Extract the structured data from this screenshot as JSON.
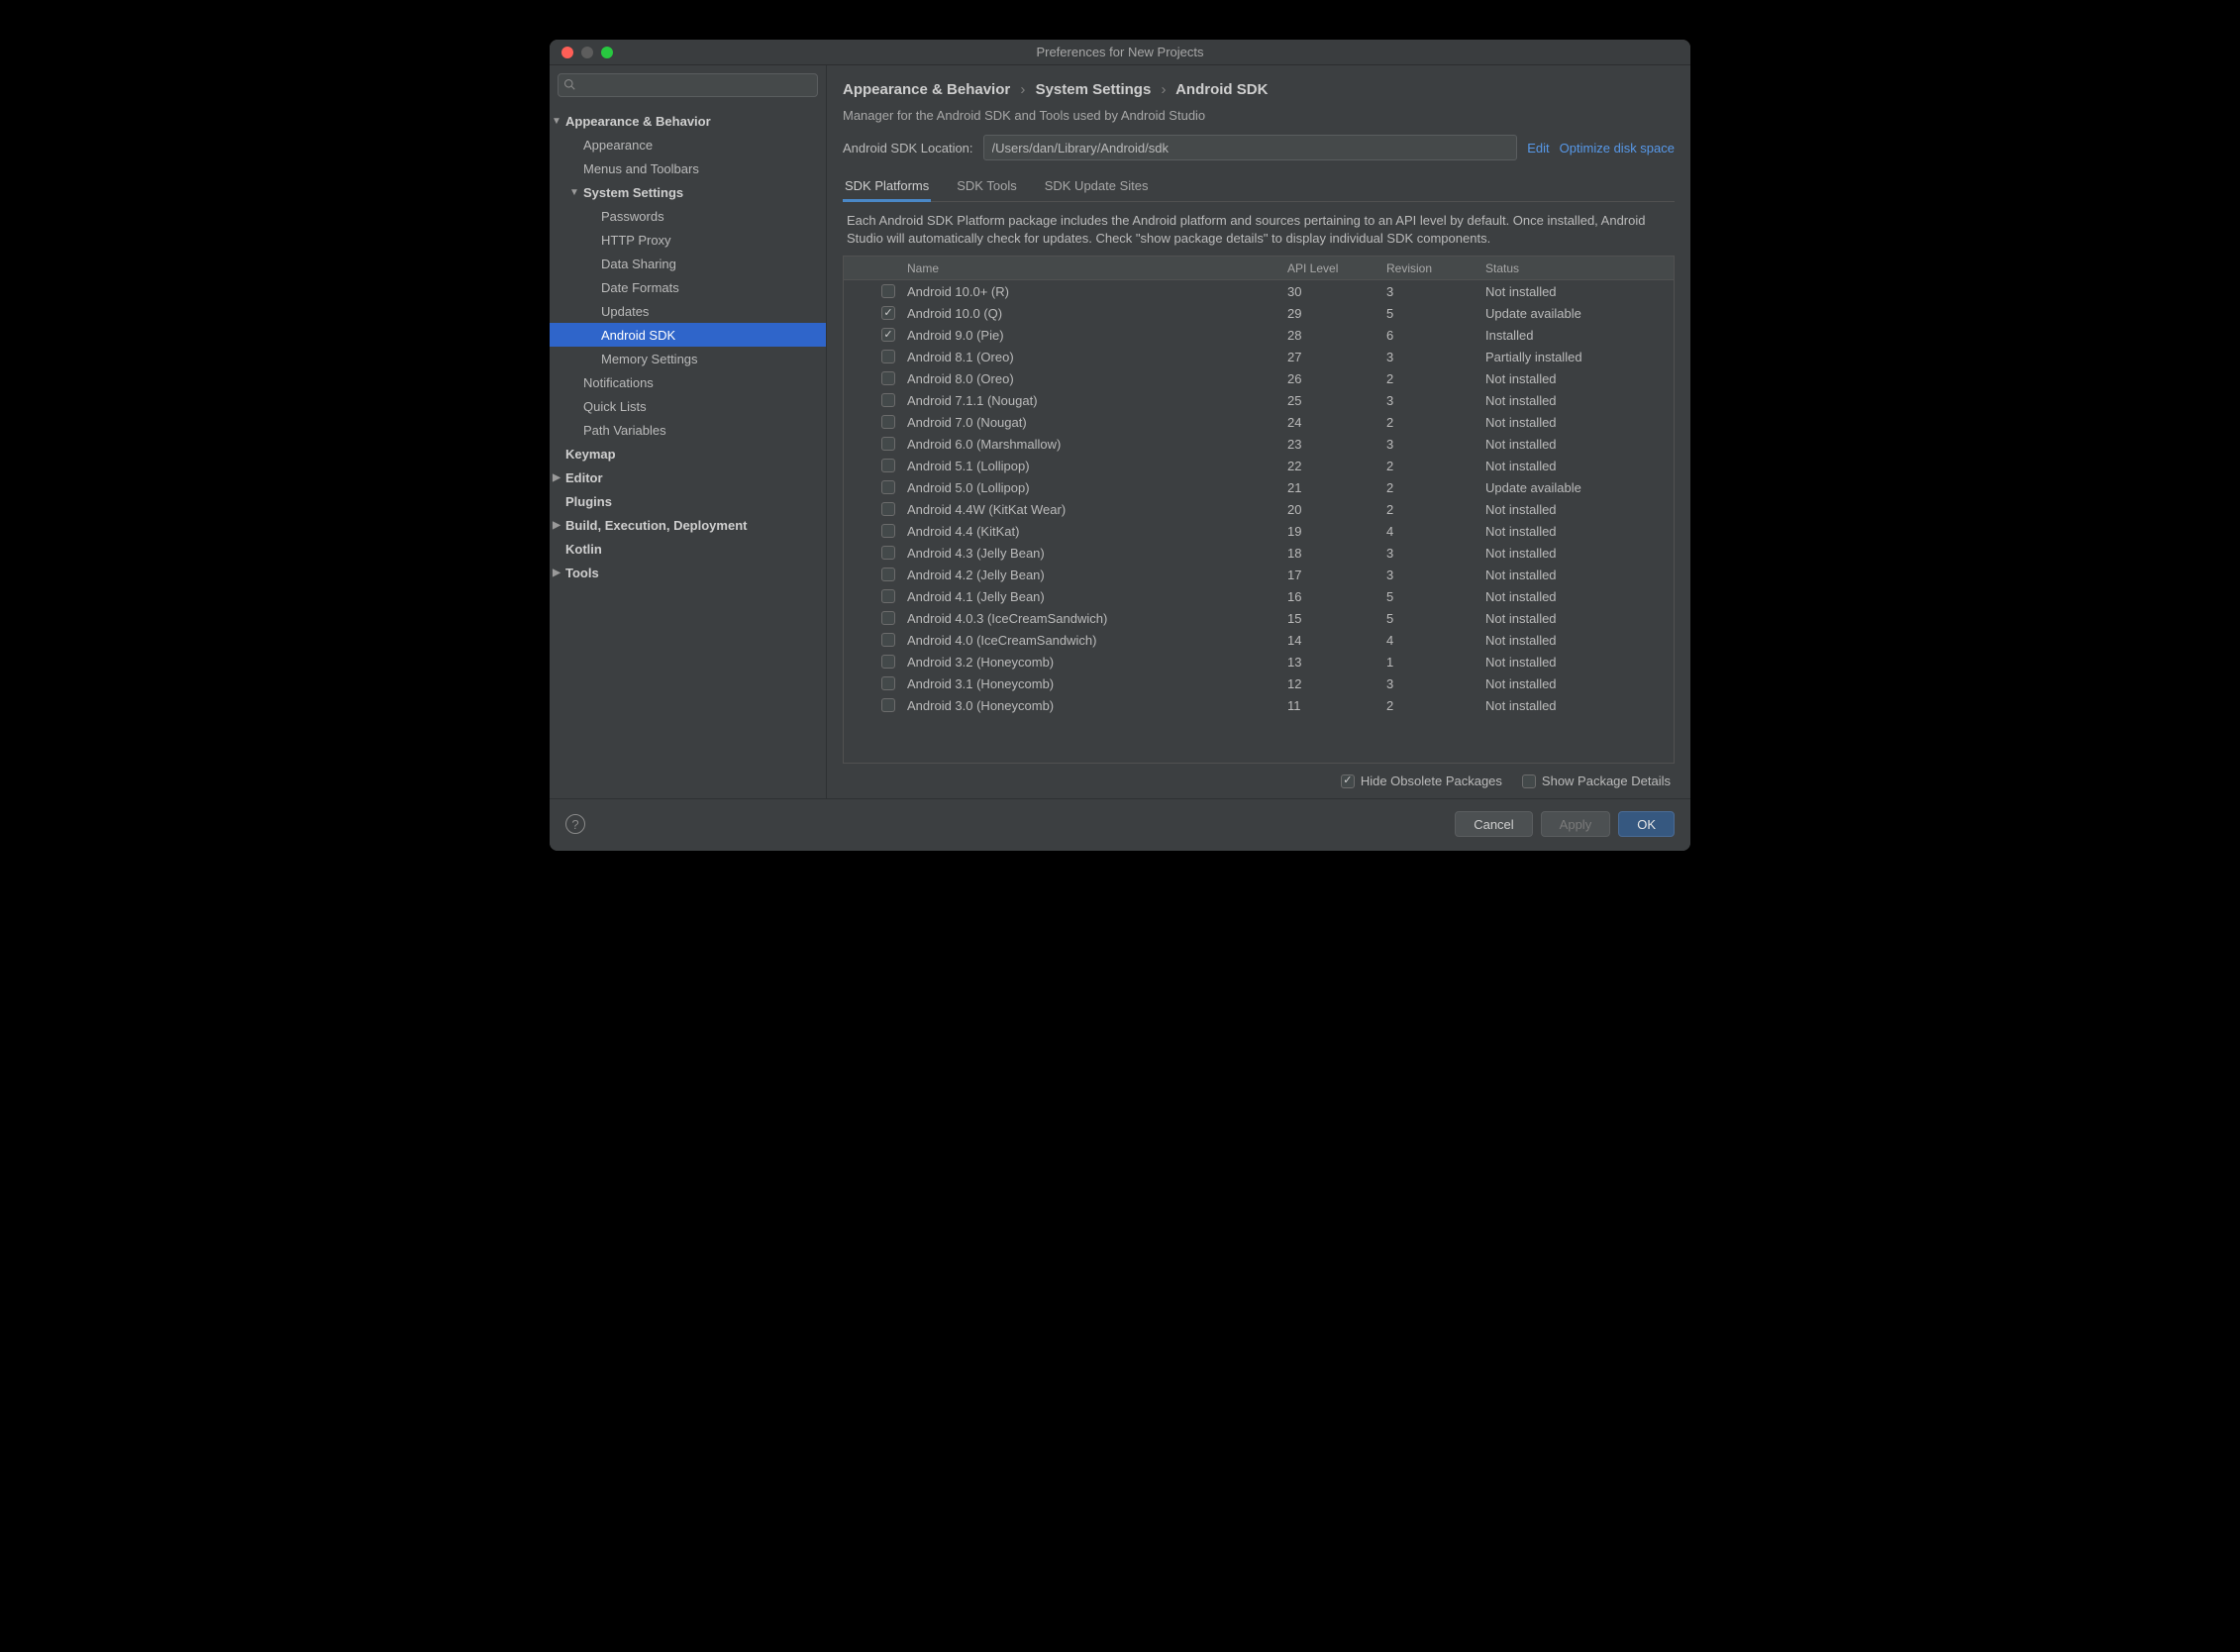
{
  "window": {
    "title": "Preferences for New Projects"
  },
  "search": {
    "placeholder": ""
  },
  "sidebar": {
    "items": [
      {
        "label": "Appearance & Behavior",
        "depth": 0,
        "bold": true,
        "expanded": true
      },
      {
        "label": "Appearance",
        "depth": 1
      },
      {
        "label": "Menus and Toolbars",
        "depth": 1
      },
      {
        "label": "System Settings",
        "depth": 1,
        "bold": true,
        "expanded": true
      },
      {
        "label": "Passwords",
        "depth": 2
      },
      {
        "label": "HTTP Proxy",
        "depth": 2
      },
      {
        "label": "Data Sharing",
        "depth": 2
      },
      {
        "label": "Date Formats",
        "depth": 2
      },
      {
        "label": "Updates",
        "depth": 2
      },
      {
        "label": "Android SDK",
        "depth": 2,
        "selected": true
      },
      {
        "label": "Memory Settings",
        "depth": 2
      },
      {
        "label": "Notifications",
        "depth": 1
      },
      {
        "label": "Quick Lists",
        "depth": 1
      },
      {
        "label": "Path Variables",
        "depth": 1
      },
      {
        "label": "Keymap",
        "depth": 0,
        "bold": true
      },
      {
        "label": "Editor",
        "depth": 0,
        "bold": true,
        "collapsed": true
      },
      {
        "label": "Plugins",
        "depth": 0,
        "bold": true
      },
      {
        "label": "Build, Execution, Deployment",
        "depth": 0,
        "bold": true,
        "collapsed": true
      },
      {
        "label": "Kotlin",
        "depth": 0,
        "bold": true
      },
      {
        "label": "Tools",
        "depth": 0,
        "bold": true,
        "collapsed": true
      }
    ]
  },
  "breadcrumb": {
    "a": "Appearance & Behavior",
    "b": "System Settings",
    "c": "Android SDK"
  },
  "subtitle": "Manager for the Android SDK and Tools used by Android Studio",
  "location": {
    "label": "Android SDK Location:",
    "value": "/Users/dan/Library/Android/sdk",
    "edit": "Edit",
    "optimize": "Optimize disk space"
  },
  "tabs": {
    "items": [
      {
        "label": "SDK Platforms",
        "active": true
      },
      {
        "label": "SDK Tools"
      },
      {
        "label": "SDK Update Sites"
      }
    ]
  },
  "description": "Each Android SDK Platform package includes the Android platform and sources pertaining to an API level by default. Once installed, Android Studio will automatically check for updates. Check \"show package details\" to display individual SDK components.",
  "table": {
    "columns": {
      "name": "Name",
      "api": "API Level",
      "rev": "Revision",
      "status": "Status"
    },
    "rows": [
      {
        "name": "Android 10.0+ (R)",
        "api": "30",
        "rev": "3",
        "status": "Not installed",
        "checked": false
      },
      {
        "name": "Android 10.0 (Q)",
        "api": "29",
        "rev": "5",
        "status": "Update available",
        "checked": true
      },
      {
        "name": "Android 9.0 (Pie)",
        "api": "28",
        "rev": "6",
        "status": "Installed",
        "checked": true
      },
      {
        "name": "Android 8.1 (Oreo)",
        "api": "27",
        "rev": "3",
        "status": "Partially installed",
        "checked": false
      },
      {
        "name": "Android 8.0 (Oreo)",
        "api": "26",
        "rev": "2",
        "status": "Not installed",
        "checked": false
      },
      {
        "name": "Android 7.1.1 (Nougat)",
        "api": "25",
        "rev": "3",
        "status": "Not installed",
        "checked": false
      },
      {
        "name": "Android 7.0 (Nougat)",
        "api": "24",
        "rev": "2",
        "status": "Not installed",
        "checked": false
      },
      {
        "name": "Android 6.0 (Marshmallow)",
        "api": "23",
        "rev": "3",
        "status": "Not installed",
        "checked": false
      },
      {
        "name": "Android 5.1 (Lollipop)",
        "api": "22",
        "rev": "2",
        "status": "Not installed",
        "checked": false
      },
      {
        "name": "Android 5.0 (Lollipop)",
        "api": "21",
        "rev": "2",
        "status": "Update available",
        "checked": false
      },
      {
        "name": "Android 4.4W (KitKat Wear)",
        "api": "20",
        "rev": "2",
        "status": "Not installed",
        "checked": false
      },
      {
        "name": "Android 4.4 (KitKat)",
        "api": "19",
        "rev": "4",
        "status": "Not installed",
        "checked": false
      },
      {
        "name": "Android 4.3 (Jelly Bean)",
        "api": "18",
        "rev": "3",
        "status": "Not installed",
        "checked": false
      },
      {
        "name": "Android 4.2 (Jelly Bean)",
        "api": "17",
        "rev": "3",
        "status": "Not installed",
        "checked": false
      },
      {
        "name": "Android 4.1 (Jelly Bean)",
        "api": "16",
        "rev": "5",
        "status": "Not installed",
        "checked": false
      },
      {
        "name": "Android 4.0.3 (IceCreamSandwich)",
        "api": "15",
        "rev": "5",
        "status": "Not installed",
        "checked": false
      },
      {
        "name": "Android 4.0 (IceCreamSandwich)",
        "api": "14",
        "rev": "4",
        "status": "Not installed",
        "checked": false
      },
      {
        "name": "Android 3.2 (Honeycomb)",
        "api": "13",
        "rev": "1",
        "status": "Not installed",
        "checked": false
      },
      {
        "name": "Android 3.1 (Honeycomb)",
        "api": "12",
        "rev": "3",
        "status": "Not installed",
        "checked": false
      },
      {
        "name": "Android 3.0 (Honeycomb)",
        "api": "11",
        "rev": "2",
        "status": "Not installed",
        "checked": false
      }
    ]
  },
  "options": {
    "hide_obsolete": {
      "label": "Hide Obsolete Packages",
      "checked": true
    },
    "show_details": {
      "label": "Show Package Details",
      "checked": false
    }
  },
  "footer": {
    "cancel": "Cancel",
    "apply": "Apply",
    "ok": "OK"
  },
  "colors": {
    "window_bg": "#3c3f41",
    "selection": "#2f65ca",
    "link": "#5798e8",
    "tab_underline": "#4a88c7",
    "primary_btn": "#365880",
    "text": "#bbbbbb",
    "text_bright": "#cfcfcf",
    "border": "#515151"
  }
}
